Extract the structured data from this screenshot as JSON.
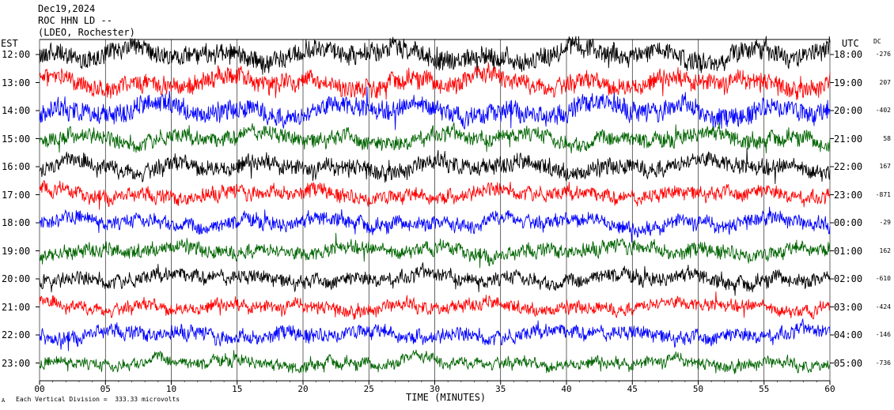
{
  "header": {
    "date": "Dec19,2024",
    "station": "ROC HHN LD --",
    "location": "(LDEO, Rochester)"
  },
  "left_tz": "EST",
  "right_tz": "UTC",
  "dc_header": "DC",
  "footer": {
    "logo": "A",
    "scale_note": "Each Vertical Division =  333.33 microvolts"
  },
  "chart_data": {
    "type": "line",
    "title": "",
    "xlabel": "TIME (MINUTES)",
    "ylabel": "",
    "xlim": [
      0,
      60
    ],
    "x_ticks": [
      "00",
      "05",
      "10",
      "15",
      "20",
      "25",
      "30",
      "35",
      "40",
      "45",
      "50",
      "55",
      "60"
    ],
    "grid": "vertical lines every minute 5",
    "trace_colors": [
      "#000000",
      "#ff0000",
      "#0000ff",
      "#006400"
    ],
    "rows": [
      {
        "est": "12:00",
        "utc": "18:00",
        "dc": "-276",
        "color": "#000000",
        "amplitude": 1.2
      },
      {
        "est": "13:00",
        "utc": "19:00",
        "dc": "207",
        "color": "#ff0000",
        "amplitude": 1.1
      },
      {
        "est": "14:00",
        "utc": "20:00",
        "dc": "-402",
        "color": "#0000ff",
        "amplitude": 1.2
      },
      {
        "est": "15:00",
        "utc": "21:00",
        "dc": "58",
        "color": "#006400",
        "amplitude": 0.9
      },
      {
        "est": "16:00",
        "utc": "22:00",
        "dc": "167",
        "color": "#000000",
        "amplitude": 1.0
      },
      {
        "est": "17:00",
        "utc": "23:00",
        "dc": "-871",
        "color": "#ff0000",
        "amplitude": 0.8
      },
      {
        "est": "18:00",
        "utc": "00:00",
        "dc": "-29",
        "color": "#0000ff",
        "amplitude": 0.8
      },
      {
        "est": "19:00",
        "utc": "01:00",
        "dc": "162",
        "color": "#006400",
        "amplitude": 0.8
      },
      {
        "est": "20:00",
        "utc": "02:00",
        "dc": "-610",
        "color": "#000000",
        "amplitude": 0.8
      },
      {
        "est": "21:00",
        "utc": "03:00",
        "dc": "-424",
        "color": "#ff0000",
        "amplitude": 0.7
      },
      {
        "est": "22:00",
        "utc": "04:00",
        "dc": "-146",
        "color": "#0000ff",
        "amplitude": 0.8
      },
      {
        "est": "23:00",
        "utc": "05:00",
        "dc": "-736",
        "color": "#006400",
        "amplitude": 0.6
      }
    ]
  }
}
